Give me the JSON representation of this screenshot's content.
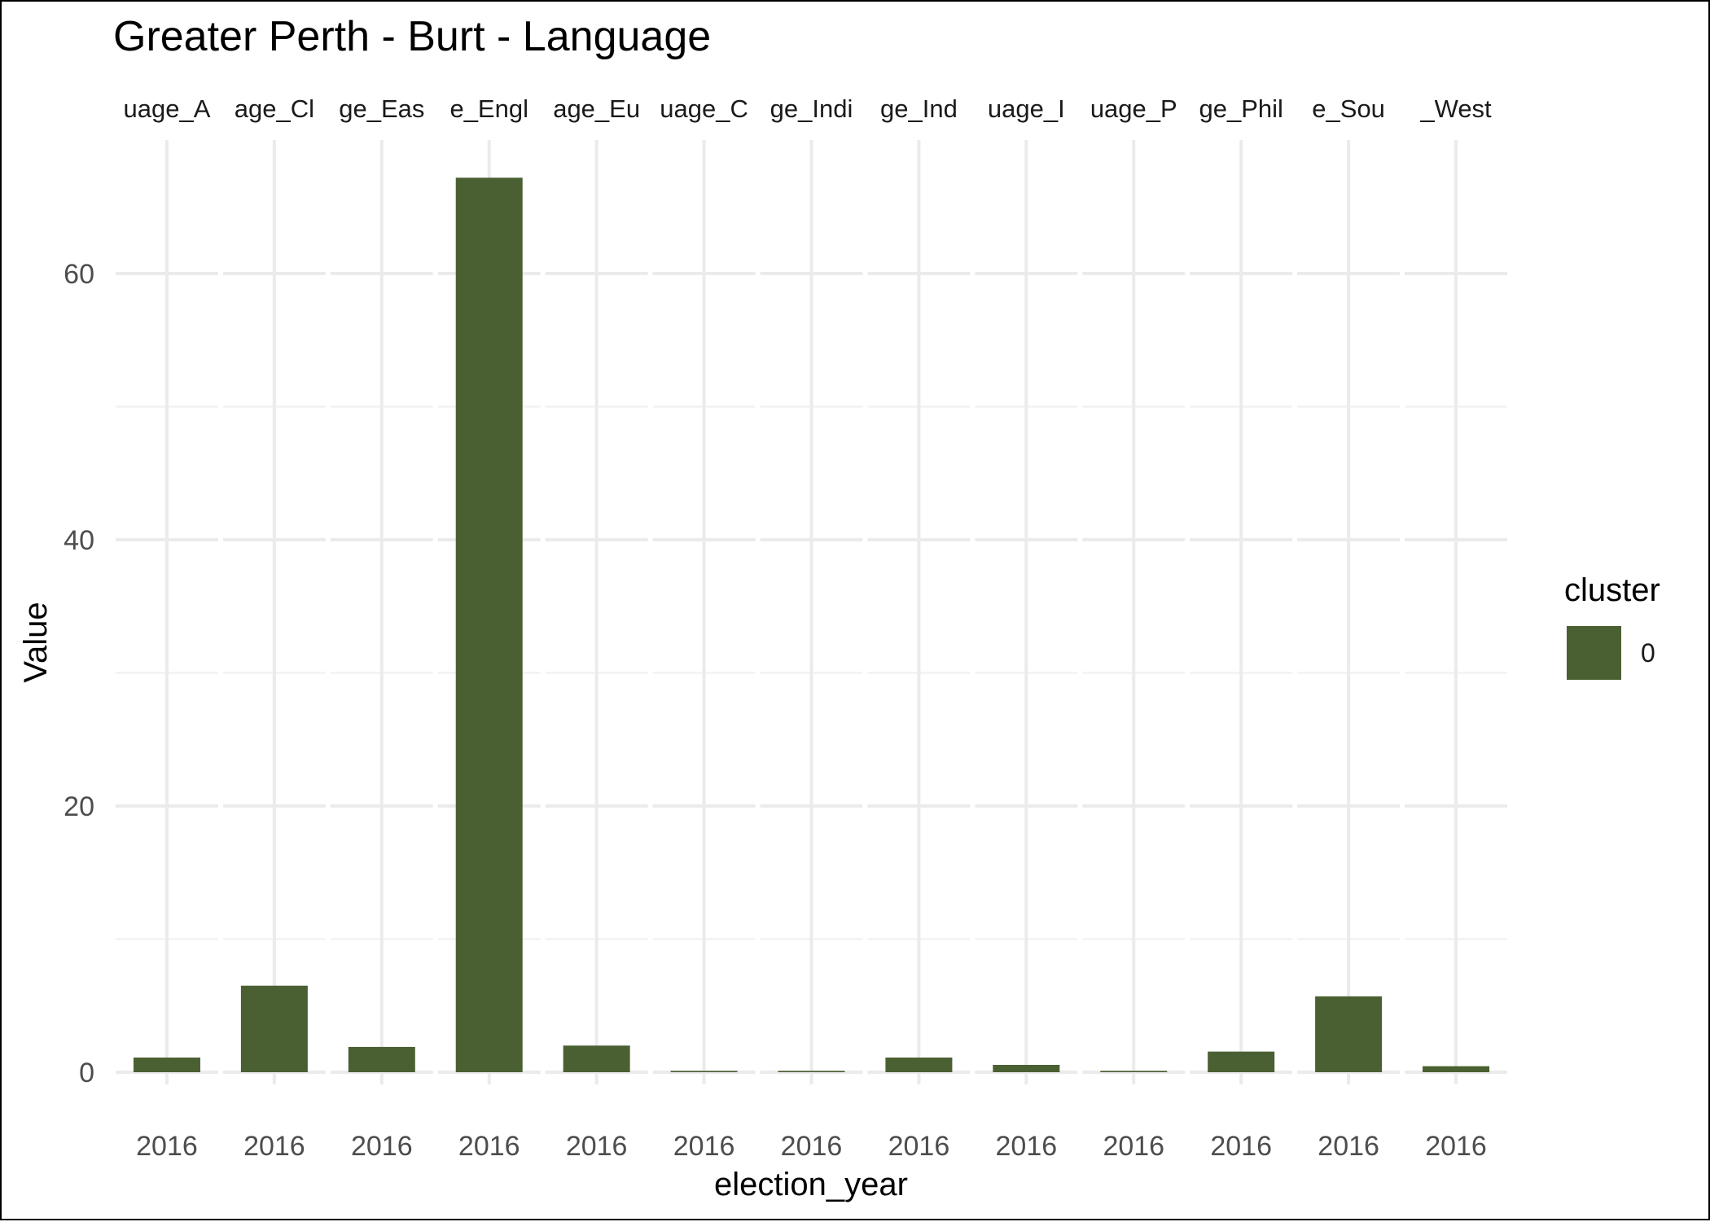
{
  "chart_data": {
    "type": "bar",
    "title": "Greater Perth - Burt - Language",
    "xlabel": "election_year",
    "ylabel": "Value",
    "ylim": [
      0,
      70
    ],
    "yticks": [
      0,
      20,
      40,
      60
    ],
    "grid": true,
    "legend": {
      "title": "cluster",
      "position": "right",
      "entries": [
        {
          "label": "0",
          "color": "#4a6032"
        }
      ]
    },
    "facet_labels": [
      "uage_A",
      "age_Cl",
      "ge_Eas",
      "e_Engl",
      "age_Eu",
      "uage_C",
      "ge_Indi",
      "ge_Ind",
      "uage_I",
      "uage_P",
      "ge_Phil",
      "e_Sou",
      "_West"
    ],
    "categories": [
      "2016",
      "2016",
      "2016",
      "2016",
      "2016",
      "2016",
      "2016",
      "2016",
      "2016",
      "2016",
      "2016",
      "2016",
      "2016"
    ],
    "series": [
      {
        "name": "0",
        "color": "#4a6032",
        "values": [
          1.1,
          6.5,
          1.9,
          67.2,
          2.0,
          0.1,
          0.1,
          1.1,
          0.55,
          0.1,
          1.55,
          5.7,
          0.45
        ]
      }
    ]
  }
}
